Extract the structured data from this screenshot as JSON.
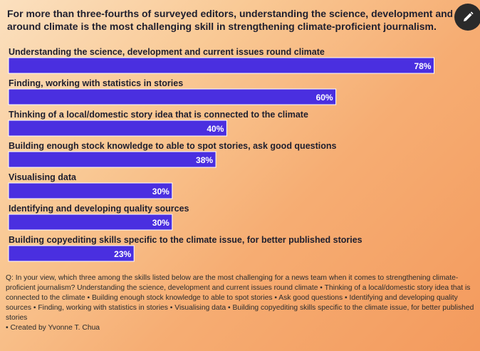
{
  "title": {
    "line1": "For more than three-fourths of surveyed editors, understanding the science, development and current issues",
    "line2": "around climate is the most challenging skill in strengthening climate-proficient journalism."
  },
  "edit_icon": "pencil-icon",
  "chart_data": {
    "type": "bar",
    "orientation": "horizontal",
    "categories": [
      "Understanding the science, development and current issues round climate",
      "Finding, working with statistics in stories",
      "Thinking of a local/domestic story idea that is connected to the climate",
      "Building enough stock knowledge to able to spot stories, ask good questions",
      "Visualising data",
      "Identifying and developing quality sources",
      "Building copyediting skills specific to the climate issue, for better published stories"
    ],
    "values": [
      78,
      60,
      40,
      38,
      30,
      30,
      23
    ],
    "value_labels": [
      "78%",
      "60%",
      "40%",
      "38%",
      "30%",
      "30%",
      "23%"
    ],
    "xlim": [
      0,
      100
    ],
    "bar_color": "#4a2fe0",
    "grid": false,
    "legend": "none"
  },
  "footnote": {
    "question": "Q: In your view, which three among the skills listed below are the most challenging for a news team when it comes to strengthening climate-proficient journalism? Understanding the science, development and current issues round climate • Thinking of a local/domestic story idea that is connected to the climate • Building enough stock knowledge to able to spot stories • Ask good questions • Identifying and developing quality sources • Finding, working with statistics in stories • Visualising data • Building copyediting skills specific to the climate issue, for better published stories",
    "credit": "• Created by Yvonne T. Chua"
  }
}
